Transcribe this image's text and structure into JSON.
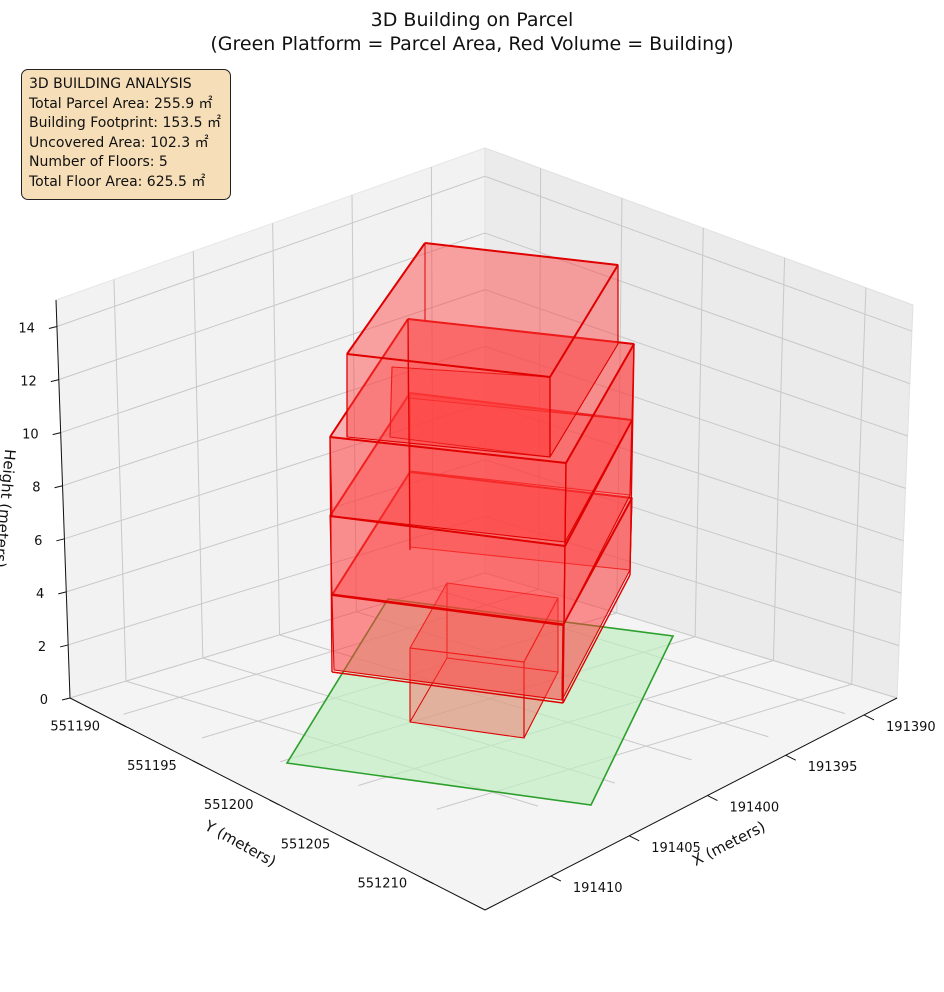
{
  "chart_data": {
    "type": "3d-box",
    "title_lines": [
      "3D Building on Parcel",
      "(Green Platform = Parcel Area, Red Volume = Building)"
    ],
    "xlabel": "X (meters)",
    "ylabel": "Y (meters)",
    "zlabel": "Height (meters)",
    "x_ticks": [
      191390,
      191395,
      191400,
      191405,
      191410
    ],
    "y_ticks": [
      551190,
      551195,
      551200,
      551205,
      551210
    ],
    "z_ticks": [
      0,
      2,
      4,
      6,
      8,
      10,
      12,
      14
    ],
    "parcel_color": "#2ca02c",
    "parcel_fill": "#bfeec0",
    "building_color": "#e00000",
    "building_fill": "#ff3b3b",
    "annotation": {
      "heading": "3D BUILDING ANALYSIS",
      "lines": [
        "Total Parcel Area: 255.9 ㎡",
        "Building Footprint: 153.5 ㎡",
        "Uncovered Area: 102.3 ㎡",
        "Number of Floors: 5",
        "Total Floor Area: 625.5 ㎡"
      ]
    }
  }
}
